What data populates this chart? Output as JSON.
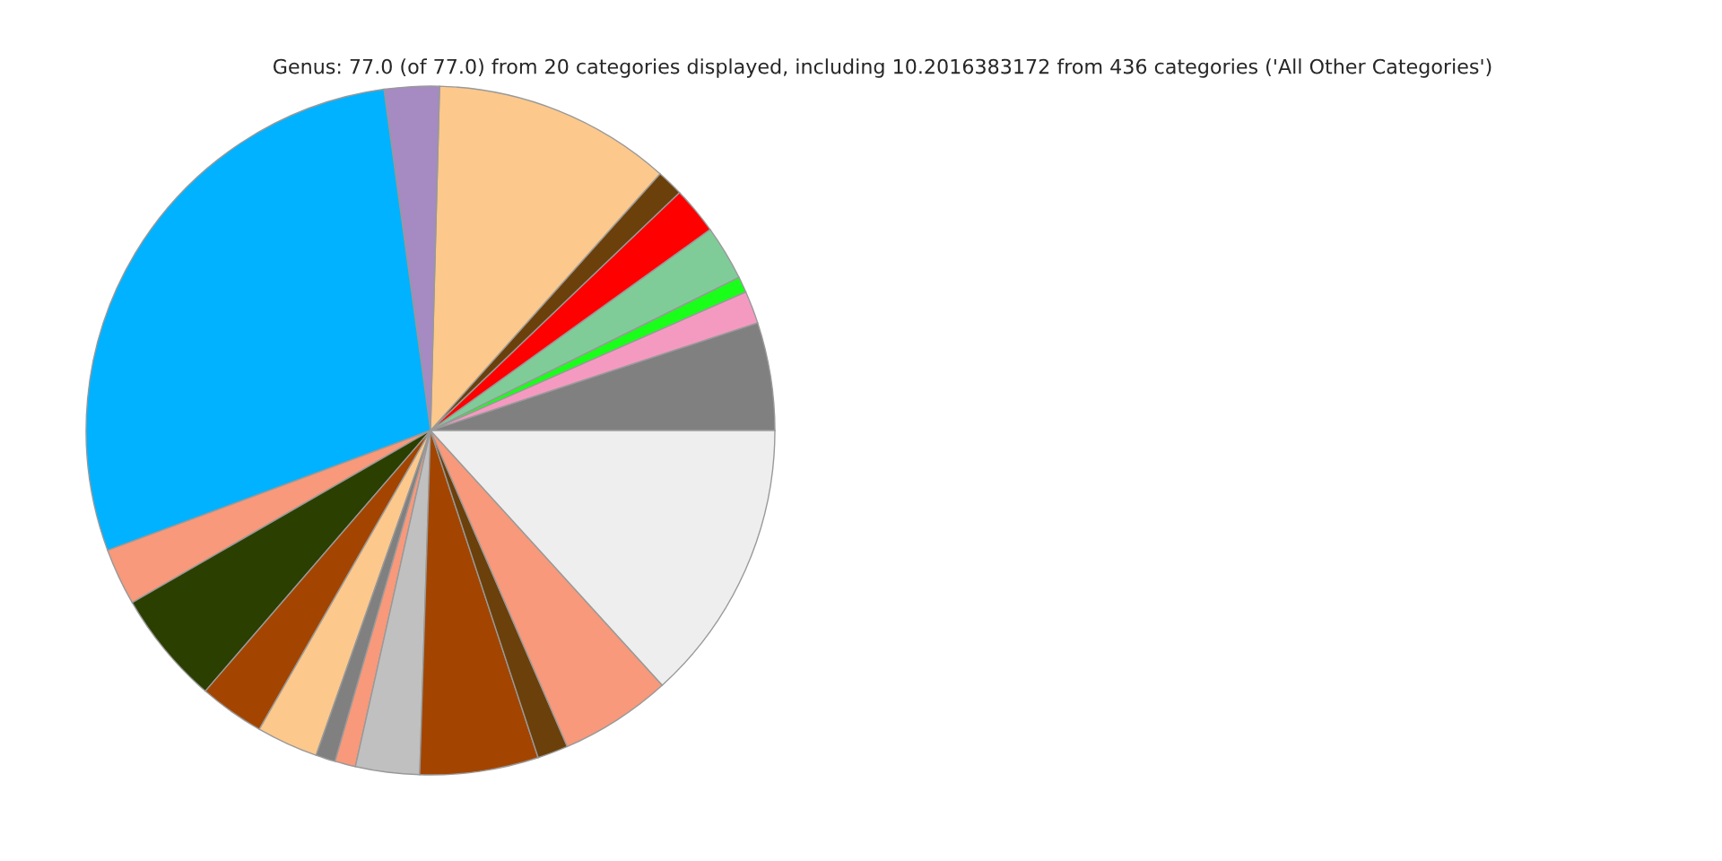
{
  "chart_data": {
    "type": "pie",
    "title": "Genus: 77.0 (of 77.0) from 20 categories displayed, including 10.2016383172 from 436 categories ('All Other Categories')",
    "categories": [
      null,
      null,
      null,
      null,
      null,
      null,
      null,
      null,
      null,
      null,
      null,
      null,
      null,
      null,
      null,
      null,
      null,
      null,
      null,
      null
    ],
    "values": [
      5.06,
      1.53,
      0.75,
      2.58,
      2.22,
      1.25,
      11.19,
      2.58,
      28.5,
      2.67,
      5.33,
      3.06,
      2.89,
      0.92,
      0.97,
      3.0,
      5.56,
      1.44,
      5.25,
      13.25
    ],
    "colors": [
      "#808080",
      "#f49ac1",
      "#1aff1a",
      "#80cc99",
      "#ff0000",
      "#6b400b",
      "#fcc88c",
      "#a58bc1",
      "#00b2ff",
      "#f7997a",
      "#2b3f00",
      "#a34500",
      "#fcc88c",
      "#808080",
      "#f7997a",
      "#c0c0c0",
      "#a34500",
      "#6b400b",
      "#f7997a",
      "#eeeeee"
    ]
  }
}
